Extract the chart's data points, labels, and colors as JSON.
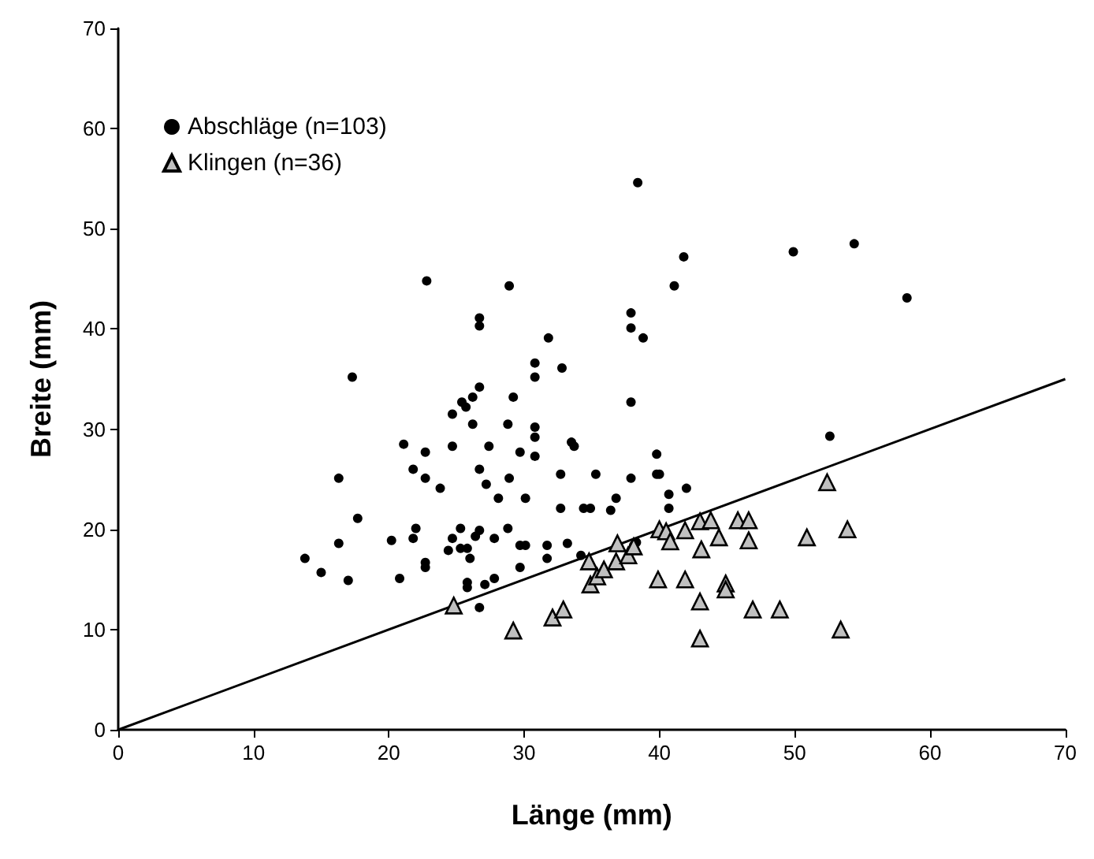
{
  "chart_data": {
    "type": "scatter",
    "xlabel": "Länge (mm)",
    "ylabel": "Breite (mm)",
    "xlim": [
      0,
      70
    ],
    "ylim": [
      0,
      70
    ],
    "xticks": [
      0,
      10,
      20,
      30,
      40,
      50,
      60,
      70
    ],
    "yticks": [
      0,
      10,
      20,
      30,
      40,
      50,
      60,
      70
    ],
    "grid": false,
    "legend": "top left",
    "series": [
      {
        "name": "Abschläge (n=103)",
        "color": "#000000",
        "marker": "circle",
        "x": [
          38.4,
          22.8,
          28.9,
          41.8,
          49.9,
          54.4,
          58.3,
          41.1,
          37.9,
          37.9,
          38.8,
          26.7,
          26.7,
          31.8,
          52.6,
          17.3,
          37.9,
          30.8,
          30.8,
          32.8,
          26.7,
          26.2,
          25.4,
          25.7,
          29.2,
          24.7,
          26.2,
          28.8,
          30.8,
          30.8,
          30.8,
          21.1,
          22.7,
          24.7,
          27.4,
          29.7,
          16.3,
          21.8,
          22.7,
          23.8,
          26.7,
          27.2,
          28.9,
          28.1,
          30.1,
          32.7,
          32.7,
          17.7,
          16.3,
          13.8,
          15,
          17,
          20.2,
          20.8,
          21.8,
          22,
          22.7,
          22.7,
          24.4,
          24.7,
          25.3,
          25.3,
          25.8,
          26,
          26.4,
          26.7,
          27.8,
          28.8,
          29.7,
          30.1,
          29.7,
          31.7,
          31.7,
          25.8,
          25.8,
          27.1,
          27.8,
          26.7,
          33.5,
          33.7,
          39.8,
          35.3,
          37.9,
          39.8,
          40,
          42,
          40.7,
          36.8,
          36.4,
          34.4,
          34.9,
          40.7,
          33.2,
          34.2,
          38.3,
          38.1
        ],
        "values": [
          54.6,
          44.8,
          44.3,
          47.2,
          47.7,
          48.5,
          43.1,
          44.3,
          41.6,
          40.1,
          39.1,
          41.1,
          40.3,
          39.1,
          29.3,
          35.2,
          32.7,
          36.6,
          35.2,
          36.1,
          34.2,
          33.2,
          32.7,
          32.2,
          33.2,
          31.5,
          30.5,
          30.5,
          30.2,
          29.2,
          27.3,
          28.5,
          27.7,
          28.3,
          28.3,
          27.7,
          25.1,
          26,
          25.1,
          24.1,
          26,
          24.5,
          25.1,
          23.1,
          23.1,
          25.5,
          22.1,
          21.1,
          18.6,
          17.1,
          15.7,
          14.9,
          18.9,
          15.1,
          19.1,
          20.1,
          16.7,
          16.2,
          17.9,
          19.1,
          20.1,
          18.1,
          18.1,
          17.1,
          19.3,
          19.9,
          19.1,
          20.1,
          18.4,
          18.4,
          16.2,
          18.4,
          17.1,
          14.7,
          14.2,
          14.5,
          15.1,
          12.2,
          28.7,
          28.3,
          27.5,
          25.5,
          25.1,
          25.5,
          25.5,
          24.1,
          23.5,
          23.1,
          21.9,
          22.1,
          22.1,
          22.1,
          18.6,
          17.4,
          18.7,
          18.4
        ]
      },
      {
        "name": "Klingen (n=36)",
        "color": "#c0c0c0",
        "marker": "triangle",
        "x": [
          24.8,
          29.2,
          32.1,
          32.9,
          34.8,
          34.9,
          35.4,
          35.9,
          36.8,
          36.9,
          37.7,
          38.1,
          40,
          40.5,
          40.8,
          41.9,
          43,
          43.8,
          44.4,
          43.1,
          45.8,
          46.6,
          46.6,
          50.9,
          53.9,
          39.9,
          41.9,
          43,
          44.9,
          44.9,
          46.9,
          48.9,
          53.4,
          43,
          52.4
        ],
        "values": [
          12.4,
          9.9,
          11.2,
          12,
          16.8,
          14.5,
          15.3,
          16,
          16.8,
          18.6,
          17.4,
          18.3,
          20,
          19.8,
          18.8,
          19.9,
          20.8,
          20.9,
          19.2,
          18,
          20.9,
          20.9,
          18.9,
          19.2,
          20,
          15,
          15,
          12.8,
          14.6,
          14,
          12,
          12,
          10,
          9.1,
          24.7
        ]
      },
      {
        "type": "line",
        "color": "#000000",
        "marker": "none",
        "line_style": "solid",
        "x": [
          0,
          70
        ],
        "values": [
          0,
          35
        ]
      }
    ]
  }
}
